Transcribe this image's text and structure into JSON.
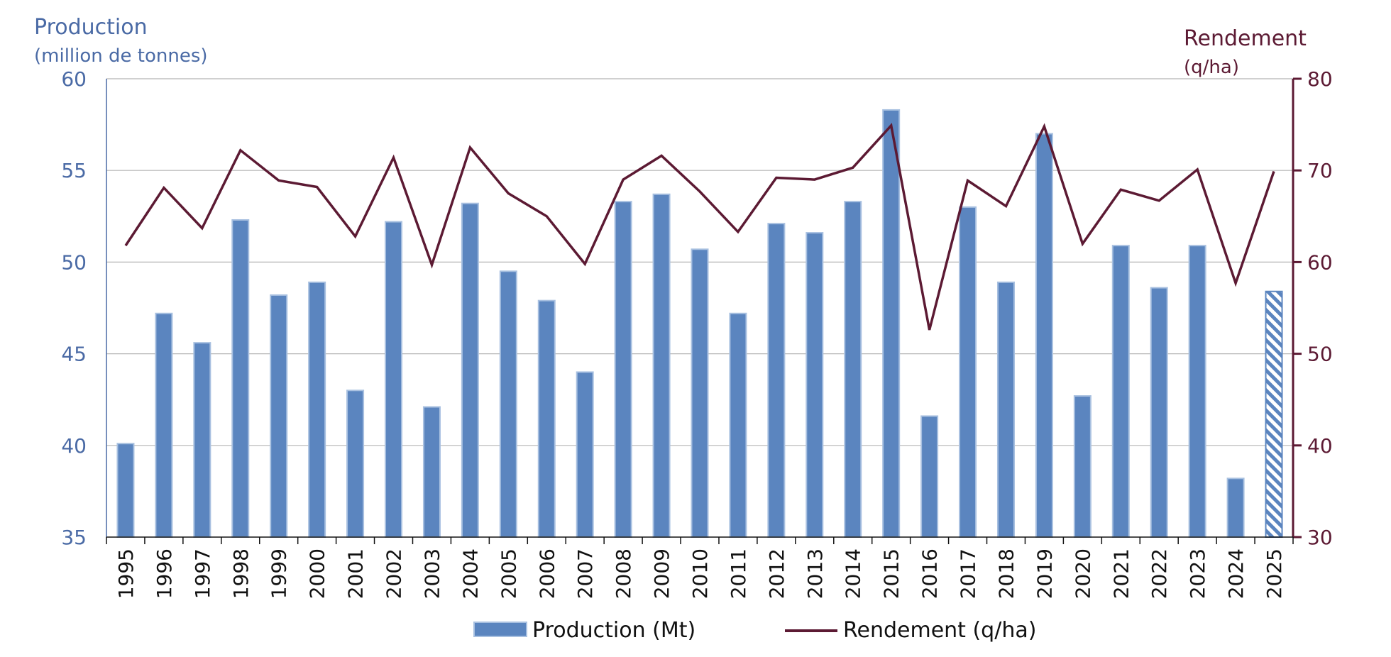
{
  "chart_data": {
    "type": "bar+line",
    "y_left": {
      "title": "Production",
      "subtitle": "(million de tonnes)",
      "range": [
        35,
        60
      ],
      "ticks": [
        35,
        40,
        45,
        50,
        55,
        60
      ],
      "tick_labels": [
        "35",
        "40",
        "45",
        "50",
        "55",
        "60"
      ]
    },
    "y_right": {
      "title": "Rendement",
      "subtitle": "(q/ha)",
      "range": [
        30,
        80
      ],
      "ticks": [
        30,
        40,
        50,
        60,
        70,
        80
      ],
      "tick_labels": [
        "30",
        "40",
        "50",
        "60",
        "70",
        "80"
      ]
    },
    "categories": [
      "1995",
      "1996",
      "1997",
      "1998",
      "1999",
      "2000",
      "2001",
      "2002",
      "2003",
      "2004",
      "2005",
      "2006",
      "2007",
      "2008",
      "2009",
      "2010",
      "2011",
      "2012",
      "2013",
      "2014",
      "2015",
      "2016",
      "2017",
      "2018",
      "2019",
      "2020",
      "2021",
      "2022",
      "2023",
      "2024",
      "2025"
    ],
    "series": [
      {
        "name": "Production (Mt)",
        "type": "bar",
        "axis": "left",
        "color": "#5b85bf",
        "values": [
          40.1,
          47.2,
          45.6,
          52.3,
          48.2,
          48.9,
          43.0,
          52.2,
          42.1,
          53.2,
          49.5,
          47.9,
          44.0,
          53.3,
          53.7,
          50.7,
          47.2,
          52.1,
          51.6,
          53.3,
          58.3,
          41.6,
          53.0,
          48.9,
          57.0,
          42.7,
          50.9,
          48.6,
          50.9,
          38.2,
          48.4
        ],
        "hatched_categories": [
          "2025"
        ]
      },
      {
        "name": "Rendement (q/ha)",
        "type": "line",
        "axis": "right",
        "color": "#5c1a33",
        "values": [
          61.8,
          68.1,
          63.7,
          72.2,
          68.9,
          68.2,
          62.8,
          71.4,
          59.7,
          72.5,
          67.5,
          65.0,
          59.8,
          69.0,
          71.6,
          67.7,
          63.3,
          69.2,
          69.0,
          70.3,
          74.9,
          52.6,
          68.9,
          66.1,
          74.8,
          62.0,
          67.9,
          66.7,
          70.1,
          57.7,
          69.9
        ]
      }
    ],
    "grid": true,
    "legend_position": "bottom"
  }
}
